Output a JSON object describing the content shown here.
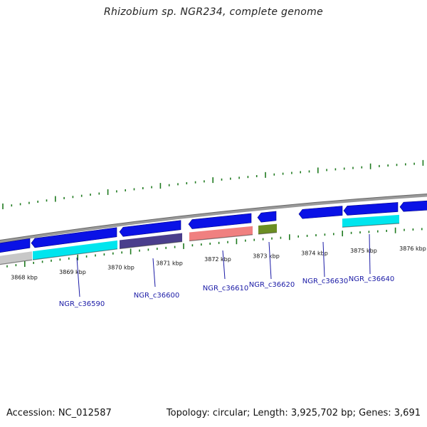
{
  "title": "Rhizobium sp. NGR234, complete genome",
  "footer": {
    "accession": "Accession: NC_012587",
    "summary": "Topology: circular; Length: 3,925,702 bp; Genes: 3,691"
  },
  "colors": {
    "backbone": "#8a8a8a",
    "cds_forward": "#0a12e6",
    "tick_green": "#1f7a1f",
    "gene_label": "#1a1aa6"
  },
  "ticks": [
    "3868 kbp",
    "3869 kbp",
    "3870 kbp",
    "3871 kbp",
    "3872 kbp",
    "3873 kbp",
    "3874 kbp",
    "3875 kbp",
    "3876 kbp"
  ],
  "genes": [
    {
      "label": "NGR_c36590",
      "color": "#00e5ee"
    },
    {
      "label": "NGR_c36600",
      "color": "#4a3e8c"
    },
    {
      "label": "NGR_c36610",
      "color": "#f08080"
    },
    {
      "label": "NGR_c36620",
      "color": "#6b8e23"
    },
    {
      "label": "NGR_c36630",
      "color": "#0a12e6"
    },
    {
      "label": "NGR_c36640",
      "color": "#00e5ee"
    }
  ]
}
